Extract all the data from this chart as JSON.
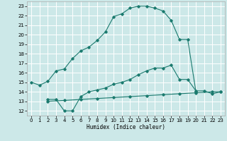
{
  "xlabel": "Humidex (Indice chaleur)",
  "bg_color": "#cce8e8",
  "grid_color": "#ffffff",
  "line_color": "#1a7a6e",
  "xlim": [
    -0.5,
    23.5
  ],
  "ylim": [
    11.5,
    23.5
  ],
  "xticks": [
    0,
    1,
    2,
    3,
    4,
    5,
    6,
    7,
    8,
    9,
    10,
    11,
    12,
    13,
    14,
    15,
    16,
    17,
    18,
    19,
    20,
    21,
    22,
    23
  ],
  "yticks": [
    12,
    13,
    14,
    15,
    16,
    17,
    18,
    19,
    20,
    21,
    22,
    23
  ],
  "curve1_x": [
    0,
    1,
    2,
    3,
    4,
    5,
    6,
    7,
    8,
    9,
    10,
    11,
    12,
    13,
    14,
    15,
    16,
    17,
    18,
    19,
    20
  ],
  "curve1_y": [
    15.0,
    14.7,
    15.1,
    16.2,
    16.4,
    17.5,
    18.3,
    18.7,
    19.4,
    20.3,
    21.9,
    22.2,
    22.8,
    23.0,
    23.0,
    22.8,
    22.5,
    21.5,
    19.5,
    19.5,
    14.0
  ],
  "curve2_x": [
    2,
    3,
    4,
    5,
    6,
    7,
    8,
    9,
    10,
    11,
    12,
    13,
    14,
    15,
    16,
    17,
    18,
    19,
    20,
    21,
    22,
    23
  ],
  "curve2_y": [
    13.2,
    13.2,
    12.0,
    12.0,
    13.5,
    14.0,
    14.2,
    14.4,
    14.8,
    15.0,
    15.3,
    15.8,
    16.2,
    16.5,
    16.5,
    16.8,
    15.3,
    15.3,
    14.1,
    14.1,
    13.8,
    14.0
  ],
  "curve3_x": [
    2,
    4,
    6,
    8,
    10,
    12,
    14,
    16,
    18,
    20,
    22,
    23
  ],
  "curve3_y": [
    13.0,
    13.1,
    13.2,
    13.3,
    13.4,
    13.5,
    13.6,
    13.7,
    13.8,
    13.9,
    14.0,
    14.0
  ]
}
